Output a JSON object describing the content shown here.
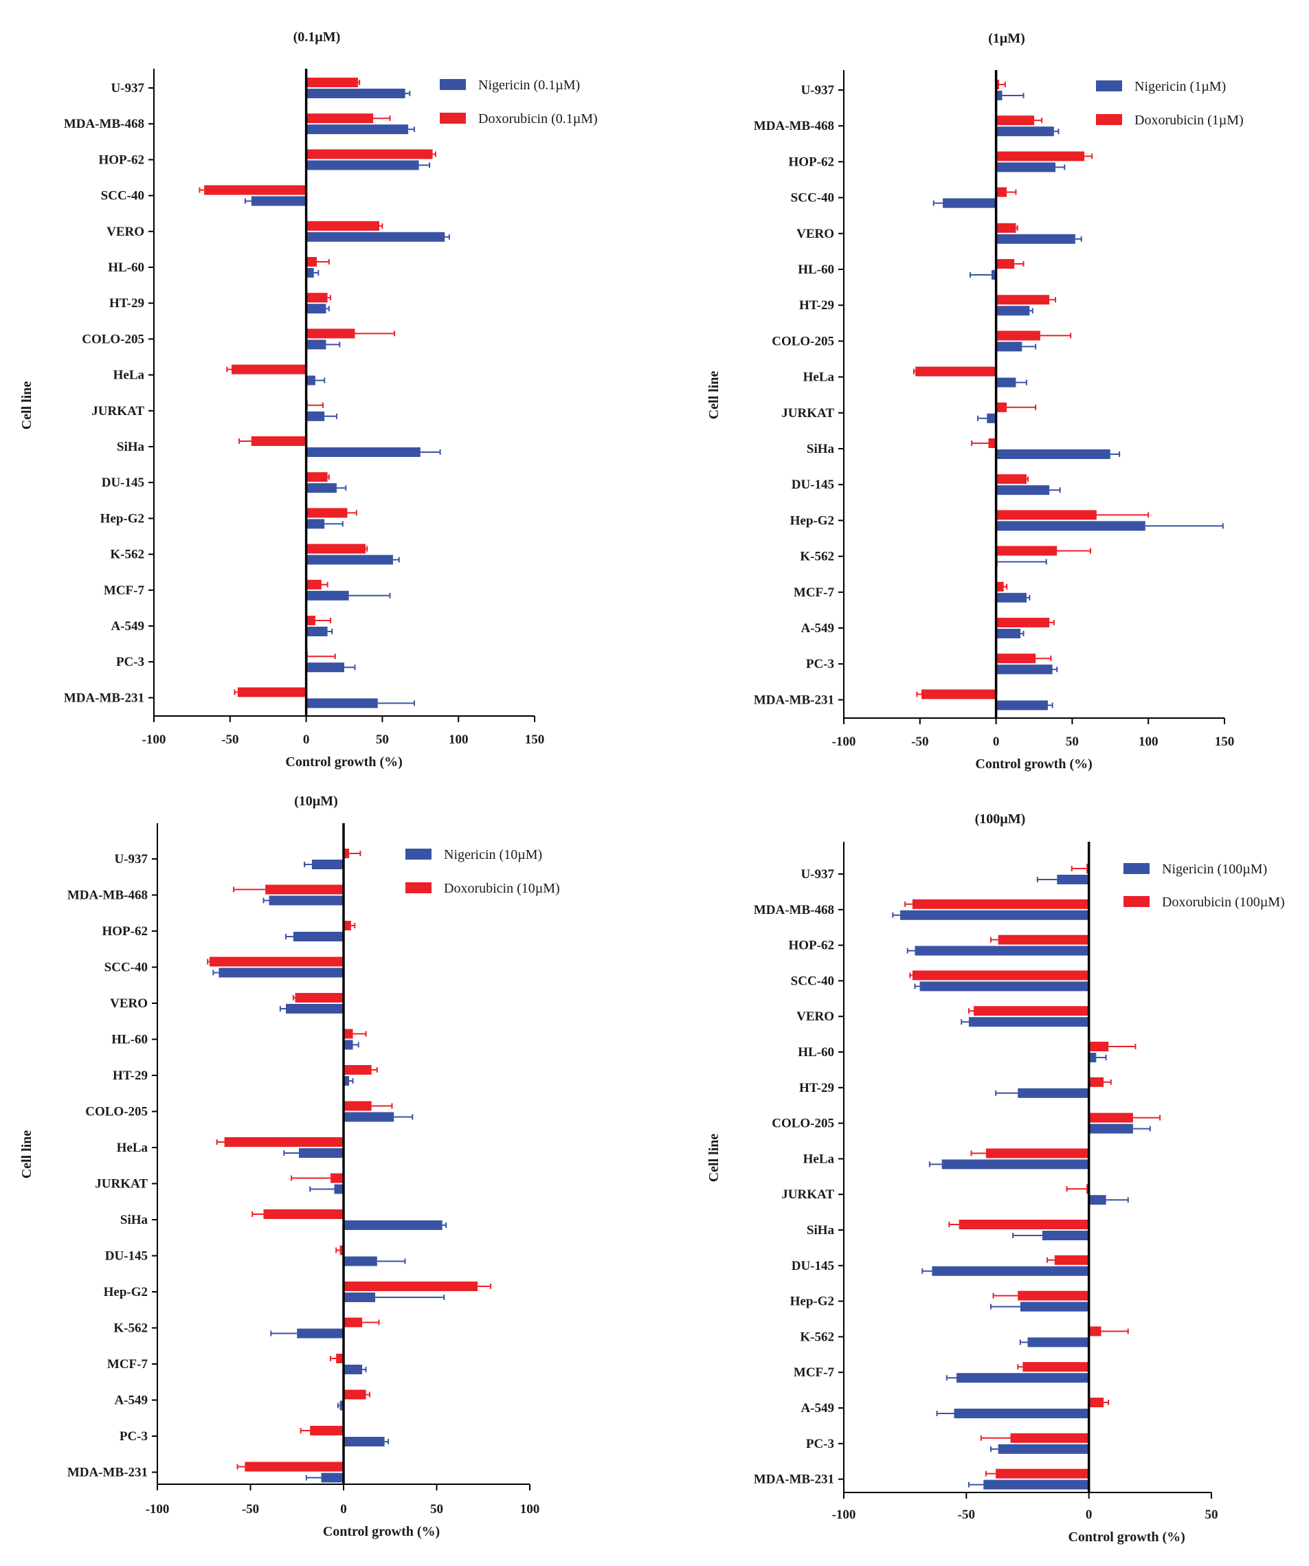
{
  "chart_data": [
    {
      "type": "bar",
      "orientation": "horizontal",
      "title": "(0.1µM)",
      "xlabel": "Control growth (%)",
      "ylabel": "Cell line",
      "xlim": [
        -100,
        150
      ],
      "xticks": [
        -100,
        -50,
        0,
        50,
        100,
        150
      ],
      "legend_position": "top-right",
      "categories": [
        "U-937",
        "MDA-MB-468",
        "HOP-62",
        "SCC-40",
        "VERO",
        "HL-60",
        "HT-29",
        "COLO-205",
        "HeLa",
        "JURKAT",
        "SiHa",
        "DU-145",
        "Hep-G2",
        "K-562",
        "MCF-7",
        "A-549",
        "PC-3",
        "MDA-MB-231"
      ],
      "series": [
        {
          "name": "Nigericin (0.1µM)",
          "color": "#3953a4",
          "values": [
            65,
            67,
            74,
            -36,
            91,
            5,
            13,
            13,
            6,
            12,
            75,
            20,
            12,
            57,
            28,
            14,
            25,
            47
          ],
          "errors": [
            3,
            4,
            7,
            4,
            3,
            3,
            2,
            9,
            6,
            8,
            13,
            6,
            12,
            4,
            27,
            3,
            7,
            24
          ]
        },
        {
          "name": "Doxorubicin (0.1µM)",
          "color": "#ec2027",
          "values": [
            34,
            44,
            83,
            -67,
            48,
            7,
            14,
            32,
            -49,
            1,
            -36,
            14,
            27,
            39,
            10,
            6,
            1,
            -45
          ],
          "errors": [
            1,
            11,
            2,
            3,
            2,
            8,
            2,
            26,
            3,
            10,
            8,
            1,
            6,
            1,
            4,
            10,
            18,
            2
          ]
        }
      ]
    },
    {
      "type": "bar",
      "orientation": "horizontal",
      "title": "(1µM)",
      "xlabel": "Control growth (%)",
      "ylabel": "Cell line",
      "xlim": [
        -100,
        150
      ],
      "xticks": [
        -100,
        -50,
        0,
        50,
        100,
        150
      ],
      "legend_position": "top-right",
      "categories": [
        "U-937",
        "MDA-MB-468",
        "HOP-62",
        "SCC-40",
        "VERO",
        "HL-60",
        "HT-29",
        "COLO-205",
        "HeLa",
        "JURKAT",
        "SiHa",
        "DU-145",
        "Hep-G2",
        "K-562",
        "MCF-7",
        "A-549",
        "PC-3",
        "MDA-MB-231"
      ],
      "series": [
        {
          "name": "Nigericin (1µM)",
          "color": "#3953a4",
          "values": [
            4,
            38,
            39,
            -35,
            52,
            -3,
            22,
            17,
            13,
            -6,
            75,
            35,
            98,
            1,
            20,
            16,
            37,
            34
          ],
          "errors": [
            14,
            3,
            6,
            6,
            4,
            14,
            2,
            9,
            7,
            6,
            6,
            7,
            51,
            32,
            2,
            2,
            3,
            3
          ]
        },
        {
          "name": "Doxorubicin (1µM)",
          "color": "#ec2027",
          "values": [
            2,
            25,
            58,
            7,
            13,
            12,
            35,
            29,
            -53,
            7,
            -5,
            20,
            66,
            40,
            5,
            35,
            26,
            -49
          ],
          "errors": [
            4,
            5,
            5,
            6,
            1,
            6,
            4,
            20,
            1,
            19,
            11,
            1,
            34,
            22,
            2,
            3,
            10,
            3
          ]
        }
      ]
    },
    {
      "type": "bar",
      "orientation": "horizontal",
      "title": "(10µM)",
      "xlabel": "Control growth (%)",
      "ylabel": "Cell line",
      "xlim": [
        -100,
        100
      ],
      "xticks": [
        -100,
        -50,
        0,
        50,
        100
      ],
      "legend_position": "top-right",
      "categories": [
        "U-937",
        "MDA-MB-468",
        "HOP-62",
        "SCC-40",
        "VERO",
        "HL-60",
        "HT-29",
        "COLO-205",
        "HeLa",
        "JURKAT",
        "SiHa",
        "DU-145",
        "Hep-G2",
        "K-562",
        "MCF-7",
        "A-549",
        "PC-3",
        "MDA-MB-231"
      ],
      "series": [
        {
          "name": "Nigericin (10µM)",
          "color": "#3953a4",
          "values": [
            -17,
            -40,
            -27,
            -67,
            -31,
            5,
            3,
            27,
            -24,
            -5,
            53,
            18,
            17,
            -25,
            10,
            -2,
            22,
            -12
          ],
          "errors": [
            4,
            3,
            4,
            3,
            3,
            3,
            2,
            10,
            8,
            13,
            2,
            15,
            37,
            14,
            2,
            1,
            2,
            8
          ]
        },
        {
          "name": "Doxorubicin (10µM)",
          "color": "#ec2027",
          "values": [
            3,
            -42,
            4,
            -72,
            -26,
            5,
            15,
            15,
            -64,
            -7,
            -43,
            -2,
            72,
            10,
            -4,
            12,
            -18,
            -53
          ],
          "errors": [
            6,
            17,
            2,
            1,
            1,
            7,
            3,
            11,
            4,
            21,
            6,
            2,
            7,
            9,
            3,
            2,
            5,
            4
          ]
        }
      ]
    },
    {
      "type": "bar",
      "orientation": "horizontal",
      "title": "(100µM)",
      "xlabel": "Control growth (%)",
      "ylabel": "Cell line",
      "xlim": [
        -100,
        50
      ],
      "xticks": [
        -100,
        -50,
        0,
        50
      ],
      "legend_position": "top-right",
      "categories": [
        "U-937",
        "MDA-MB-468",
        "HOP-62",
        "SCC-40",
        "VERO",
        "HL-60",
        "HT-29",
        "COLO-205",
        "HeLa",
        "JURKAT",
        "SiHa",
        "DU-145",
        "Hep-G2",
        "K-562",
        "MCF-7",
        "A-549",
        "PC-3",
        "MDA-MB-231"
      ],
      "series": [
        {
          "name": "Nigericin (100µM)",
          "color": "#3953a4",
          "values": [
            -13,
            -77,
            -71,
            -69,
            -49,
            3,
            -29,
            18,
            -60,
            7,
            -19,
            -64,
            -28,
            -25,
            -54,
            -55,
            -37,
            -43
          ],
          "errors": [
            8,
            3,
            3,
            2,
            3,
            4,
            9,
            7,
            5,
            9,
            12,
            4,
            12,
            3,
            4,
            7,
            3,
            6
          ]
        },
        {
          "name": "Doxorubicin (100µM)",
          "color": "#ec2027",
          "values": [
            -1,
            -72,
            -37,
            -72,
            -47,
            8,
            6,
            18,
            -42,
            -1,
            -53,
            -14,
            -29,
            5,
            -27,
            6,
            -32,
            -38
          ],
          "errors": [
            6,
            3,
            3,
            1,
            2,
            11,
            3,
            11,
            6,
            8,
            4,
            3,
            10,
            11,
            2,
            2,
            12,
            4
          ]
        }
      ]
    }
  ]
}
